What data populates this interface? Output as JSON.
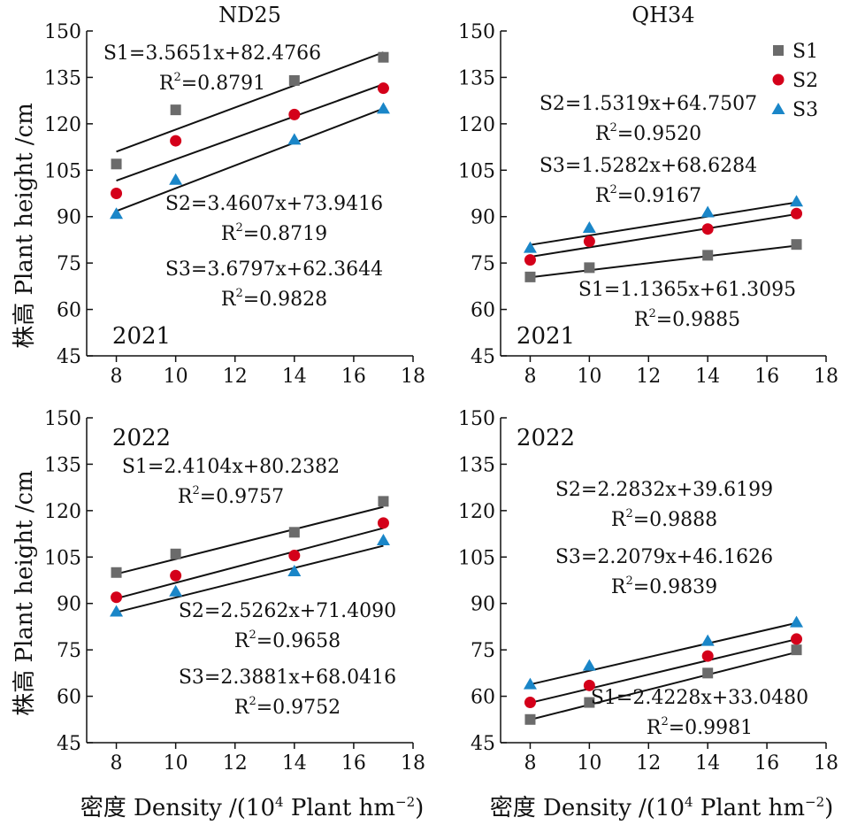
{
  "figure": {
    "ylabel": "株高 Plant height /cm",
    "xlabel_main": "密度 Density /(10",
    "xlabel_sup": "4",
    "xlabel_rest": " Plant hm",
    "xlabel_sup2": "−2",
    "xlabel_close": ")"
  },
  "legend": [
    {
      "label": "S1",
      "marker": "square",
      "color": "#6b6b6b"
    },
    {
      "label": "S2",
      "marker": "circle",
      "color": "#d4001a"
    },
    {
      "label": "S3",
      "marker": "triangle",
      "color": "#1a86c8"
    }
  ],
  "chart_data": [
    {
      "type": "scatter",
      "title": "ND25",
      "year": "2021",
      "xlim": [
        7,
        18
      ],
      "ylim": [
        45,
        150
      ],
      "xticks": [
        "8",
        "10",
        "12",
        "14",
        "16",
        "18"
      ],
      "yticks": [
        "45",
        "60",
        "75",
        "90",
        "105",
        "120",
        "135",
        "150"
      ],
      "x": [
        8,
        10,
        14,
        17
      ],
      "series": [
        {
          "name": "S1",
          "values": [
            107,
            124.5,
            134,
            141.5
          ],
          "slope": 3.5651,
          "intercept": 82.4766,
          "eq": "S1=3.5651x+82.4766",
          "r2_label": "R",
          "r2_sup": "2",
          "r2": "=0.8791"
        },
        {
          "name": "S2",
          "values": [
            97.5,
            114.5,
            123,
            131.5
          ],
          "slope": 3.4607,
          "intercept": 73.9416,
          "eq": "S2=3.4607x+73.9416",
          "r2_label": "R",
          "r2_sup": "2",
          "r2": "=0.8719"
        },
        {
          "name": "S3",
          "values": [
            91,
            102,
            115,
            125
          ],
          "slope": 3.6797,
          "intercept": 62.3644,
          "eq": "S3=3.6797x+62.3644",
          "r2_label": "R",
          "r2_sup": "2",
          "r2": "=0.9828"
        }
      ]
    },
    {
      "type": "scatter",
      "title": "QH34",
      "year": "2021",
      "xlim": [
        7,
        18
      ],
      "ylim": [
        45,
        150
      ],
      "xticks": [
        "8",
        "10",
        "12",
        "14",
        "16",
        "18"
      ],
      "yticks": [
        "45",
        "60",
        "75",
        "90",
        "105",
        "120",
        "135",
        "150"
      ],
      "x": [
        8,
        10,
        14,
        17
      ],
      "series": [
        {
          "name": "S1",
          "values": [
            70.5,
            73.5,
            77.5,
            81
          ],
          "slope": 1.1365,
          "intercept": 61.3095,
          "eq": "S1=1.1365x+61.3095",
          "r2_label": "R",
          "r2_sup": "2",
          "r2": "=0.9885"
        },
        {
          "name": "S2",
          "values": [
            76,
            82,
            86,
            91
          ],
          "slope": 1.5319,
          "intercept": 64.7507,
          "eq": "S2=1.5319x+64.7507",
          "r2_label": "R",
          "r2_sup": "2",
          "r2": "=0.9520"
        },
        {
          "name": "S3",
          "values": [
            80,
            86.5,
            91.5,
            95
          ],
          "slope": 1.5282,
          "intercept": 68.6284,
          "eq": "S3=1.5282x+68.6284",
          "r2_label": "R",
          "r2_sup": "2",
          "r2": "=0.9167"
        }
      ]
    },
    {
      "type": "scatter",
      "title": "",
      "year": "2022",
      "xlim": [
        7,
        18
      ],
      "ylim": [
        45,
        150
      ],
      "xticks": [
        "8",
        "10",
        "12",
        "14",
        "16",
        "18"
      ],
      "yticks": [
        "45",
        "60",
        "75",
        "90",
        "105",
        "120",
        "135",
        "150"
      ],
      "x": [
        8,
        10,
        14,
        17
      ],
      "series": [
        {
          "name": "S1",
          "values": [
            100,
            106,
            113,
            123
          ],
          "slope": 2.4104,
          "intercept": 80.2382,
          "eq": "S1=2.4104x+80.2382",
          "r2_label": "R",
          "r2_sup": "2",
          "r2": "=0.9757"
        },
        {
          "name": "S2",
          "values": [
            92,
            99,
            105.5,
            116
          ],
          "slope": 2.5262,
          "intercept": 71.409,
          "eq": "S2=2.5262x+71.4090",
          "r2_label": "R",
          "r2_sup": "2",
          "r2": "=0.9658"
        },
        {
          "name": "S3",
          "values": [
            87.5,
            94,
            100.5,
            110.5
          ],
          "slope": 2.3881,
          "intercept": 68.0416,
          "eq": "S3=2.3881x+68.0416",
          "r2_label": "R",
          "r2_sup": "2",
          "r2": "=0.9752"
        }
      ]
    },
    {
      "type": "scatter",
      "title": "",
      "year": "2022",
      "xlim": [
        7,
        18
      ],
      "ylim": [
        45,
        150
      ],
      "xticks": [
        "8",
        "10",
        "12",
        "14",
        "16",
        "18"
      ],
      "yticks": [
        "45",
        "60",
        "75",
        "90",
        "105",
        "120",
        "135",
        "150"
      ],
      "x": [
        8,
        10,
        14,
        17
      ],
      "series": [
        {
          "name": "S1",
          "values": [
            52.5,
            58,
            67.5,
            75
          ],
          "slope": 2.4228,
          "intercept": 33.048,
          "eq": "S1=2.4228x+33.0480",
          "r2_label": "R",
          "r2_sup": "2",
          "r2": "=0.9981"
        },
        {
          "name": "S2",
          "values": [
            58,
            63.5,
            73,
            78.5
          ],
          "slope": 2.2832,
          "intercept": 39.6199,
          "eq": "S2=2.2832x+39.6199",
          "r2_label": "R",
          "r2_sup": "2",
          "r2": "=0.9888"
        },
        {
          "name": "S3",
          "values": [
            64,
            70,
            78,
            84
          ],
          "slope": 2.2079,
          "intercept": 46.1626,
          "eq": "S3=2.2079x+46.1626",
          "r2_label": "R",
          "r2_sup": "2",
          "r2": "=0.9839"
        }
      ]
    }
  ]
}
